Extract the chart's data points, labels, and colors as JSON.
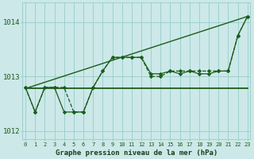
{
  "xlabel": "Graphe pression niveau de la mer (hPa)",
  "x": [
    0,
    1,
    2,
    3,
    4,
    5,
    6,
    7,
    8,
    9,
    10,
    11,
    12,
    13,
    14,
    15,
    16,
    17,
    18,
    19,
    20,
    21,
    22,
    23
  ],
  "series_dashed": [
    1012.8,
    1012.35,
    1012.8,
    1012.8,
    1012.8,
    1012.35,
    1012.35,
    1012.8,
    1013.1,
    1013.35,
    1013.35,
    1013.35,
    1013.35,
    1013.0,
    1013.0,
    1013.1,
    1013.1,
    1013.1,
    1013.1,
    1013.1,
    1013.1,
    1013.1,
    1013.75,
    1014.1
  ],
  "series_solid": [
    1012.8,
    1012.35,
    1012.8,
    1012.8,
    1012.35,
    1012.35,
    1012.35,
    1012.8,
    1013.1,
    1013.35,
    1013.35,
    1013.35,
    1013.35,
    1013.05,
    1013.05,
    1013.1,
    1013.05,
    1013.1,
    1013.05,
    1013.05,
    1013.1,
    1013.1,
    1013.75,
    1014.1
  ],
  "series_flat_start": 0,
  "series_flat_end": 23,
  "series_flat_y": 1012.78,
  "diag_x0": 0,
  "diag_x1": 23,
  "diag_y0": 1012.78,
  "diag_y1": 1014.1,
  "ylim": [
    1011.85,
    1014.35
  ],
  "yticks": [
    1012.0,
    1013.0,
    1014.0
  ],
  "xlim": [
    -0.3,
    23.3
  ],
  "xticks": [
    0,
    1,
    2,
    3,
    4,
    5,
    6,
    7,
    8,
    9,
    10,
    11,
    12,
    13,
    14,
    15,
    16,
    17,
    18,
    19,
    20,
    21,
    22,
    23
  ],
  "bg_color": "#cce8e8",
  "grid_color": "#99cccc",
  "line_color": "#1a5c1a",
  "xlabel_color": "#1a3c1a"
}
